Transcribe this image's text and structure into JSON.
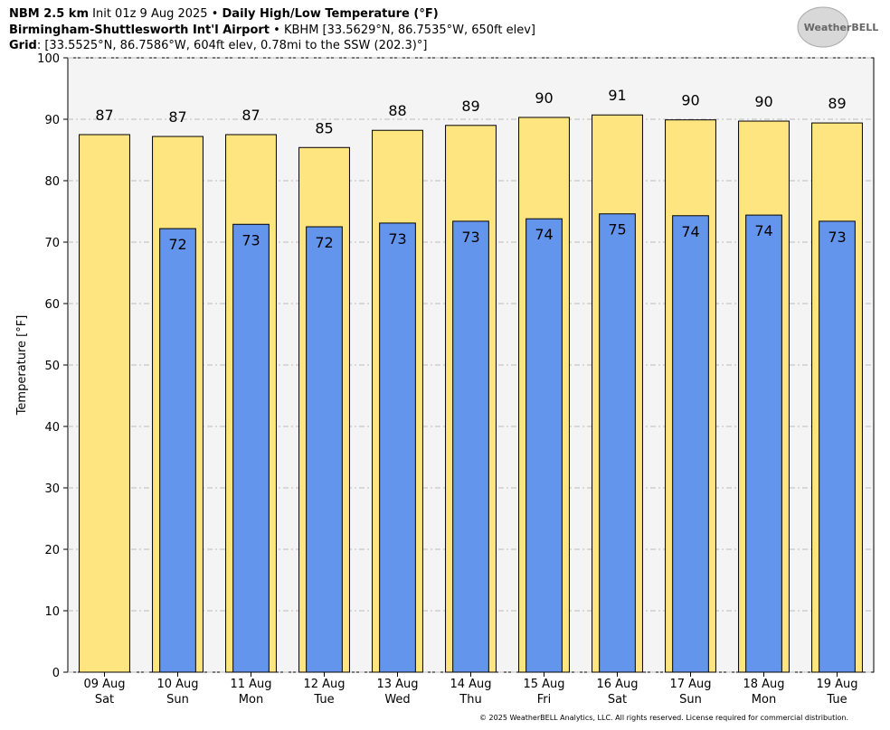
{
  "chart_data": {
    "type": "bar",
    "title_bold": "NBM 2.5 km",
    "title_init": "Init 01z 9 Aug 2025 •",
    "title_product": "Daily High/Low Temperature (°F)",
    "station_name": "Birmingham-Shuttlesworth Int'l Airport",
    "station_info": "• KBHM [33.5629°N, 86.7535°W, 650ft elev]",
    "grid_label": "Grid",
    "grid_info": ": [33.5525°N, 86.7586°W, 604ft elev, 0.78mi to the SSW (202.3)°]",
    "logo": "WeatherBELL",
    "copyright": "© 2025 WeatherBELL Analytics, LLC. All rights reserved. License required for commercial distribution.",
    "ylabel": "Temperature [°F]",
    "categories": [
      "09 Aug",
      "10 Aug",
      "11 Aug",
      "12 Aug",
      "13 Aug",
      "14 Aug",
      "15 Aug",
      "16 Aug",
      "17 Aug",
      "18 Aug",
      "19 Aug"
    ],
    "weekdays": [
      "Sat",
      "Sun",
      "Mon",
      "Tue",
      "Wed",
      "Thu",
      "Fri",
      "Sat",
      "Sun",
      "Mon",
      "Tue"
    ],
    "series": [
      {
        "color": "#ffe57f",
        "values": [
          87.5,
          87.2,
          87.5,
          85.4,
          88.2,
          89.0,
          90.3,
          90.7,
          89.9,
          89.7,
          89.4
        ],
        "value_labels": [
          "87",
          "87",
          "87",
          "85",
          "88",
          "89",
          "90",
          "91",
          "90",
          "90",
          "89"
        ]
      },
      {
        "color": "#6495ed",
        "values": [
          null,
          72.2,
          72.9,
          72.5,
          73.1,
          73.4,
          73.8,
          74.6,
          74.3,
          74.4,
          73.4
        ],
        "value_labels": [
          null,
          "72",
          "73",
          "72",
          "73",
          "73",
          "74",
          "75",
          "74",
          "74",
          "73"
        ]
      }
    ],
    "ylim": [
      0,
      100
    ],
    "yticks": [
      0,
      10,
      20,
      30,
      40,
      50,
      60,
      70,
      80,
      90,
      100
    ],
    "grid": true
  }
}
